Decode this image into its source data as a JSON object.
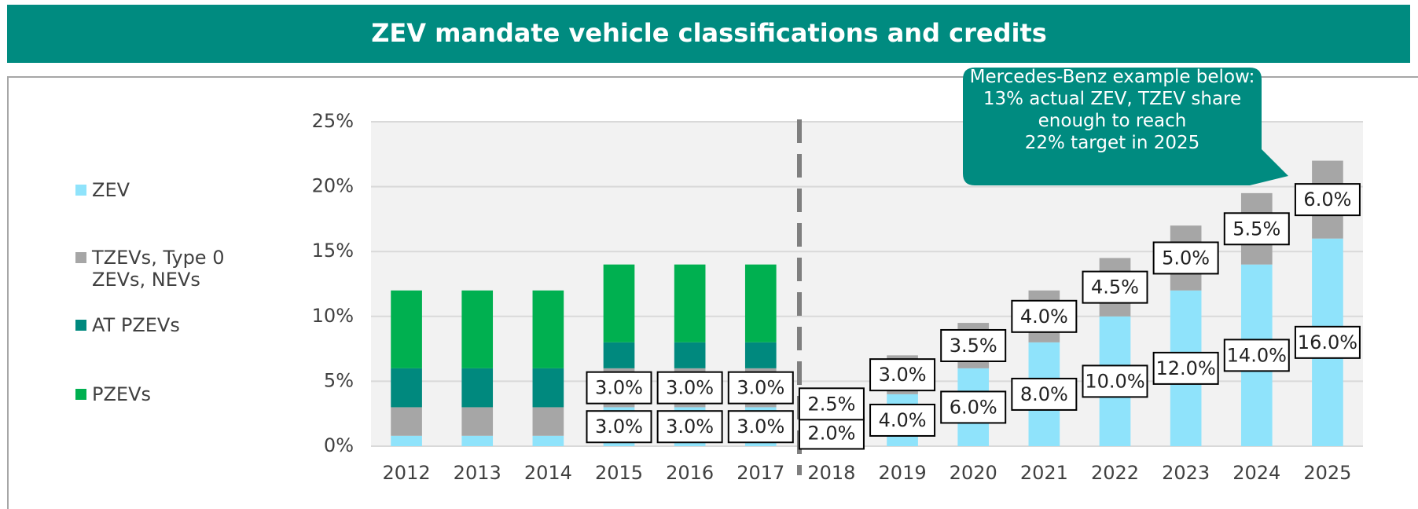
{
  "chart_data": {
    "type": "stacked_bar",
    "title": "ZEV mandate vehicle classifications and credits",
    "annotation": "Mercedes-Benz example below: 13% actual ZEV, TZEV share enough to reach\n22% target in 2025",
    "categories": [
      "2012",
      "2013",
      "2014",
      "2015",
      "2016",
      "2017",
      "2018",
      "2019",
      "2020",
      "2021",
      "2022",
      "2023",
      "2024",
      "2025"
    ],
    "series": [
      {
        "name": "ZEV",
        "color": "#8fe3fb",
        "values": [
          0.8,
          0.8,
          0.8,
          3,
          3,
          3,
          2,
          4,
          6,
          8,
          10,
          12,
          14,
          16
        ],
        "value_labels": [
          null,
          null,
          null,
          "3.0%",
          "3.0%",
          "3.0%",
          "2.0%",
          "4.0%",
          "6.0%",
          "8.0%",
          "10.0%",
          "12.0%",
          "14.0%",
          "16.0%"
        ]
      },
      {
        "name": "TZEVs, Type 0 ZEVs, NEVs",
        "color": "#a6a6a6",
        "values": [
          2.2,
          2.2,
          2.2,
          3,
          3,
          3,
          2.5,
          3,
          3.5,
          4,
          4.5,
          5,
          5.5,
          6
        ],
        "value_labels": [
          null,
          null,
          null,
          "3.0%",
          "3.0%",
          "3.0%",
          "2.5%",
          "3.0%",
          "3.5%",
          "4.0%",
          "4.5%",
          "5.0%",
          "5.5%",
          "6.0%"
        ]
      },
      {
        "name": "AT PZEVs",
        "color": "#00897e",
        "values": [
          3,
          3,
          3,
          2,
          2,
          2,
          null,
          null,
          null,
          null,
          null,
          null,
          null,
          null
        ]
      },
      {
        "name": "PZEVs",
        "color": "#00b050",
        "values": [
          6,
          6,
          6,
          6,
          6,
          6,
          null,
          null,
          null,
          null,
          null,
          null,
          null,
          null
        ]
      }
    ],
    "ylim": [
      0,
      25
    ],
    "yticks": [
      {
        "value": 0,
        "label": "0%"
      },
      {
        "value": 5,
        "label": "5%"
      },
      {
        "value": 10,
        "label": "10%"
      },
      {
        "value": 15,
        "label": "15%"
      },
      {
        "value": 20,
        "label": "20%"
      },
      {
        "value": 25,
        "label": "25%"
      }
    ],
    "grid": true
  }
}
